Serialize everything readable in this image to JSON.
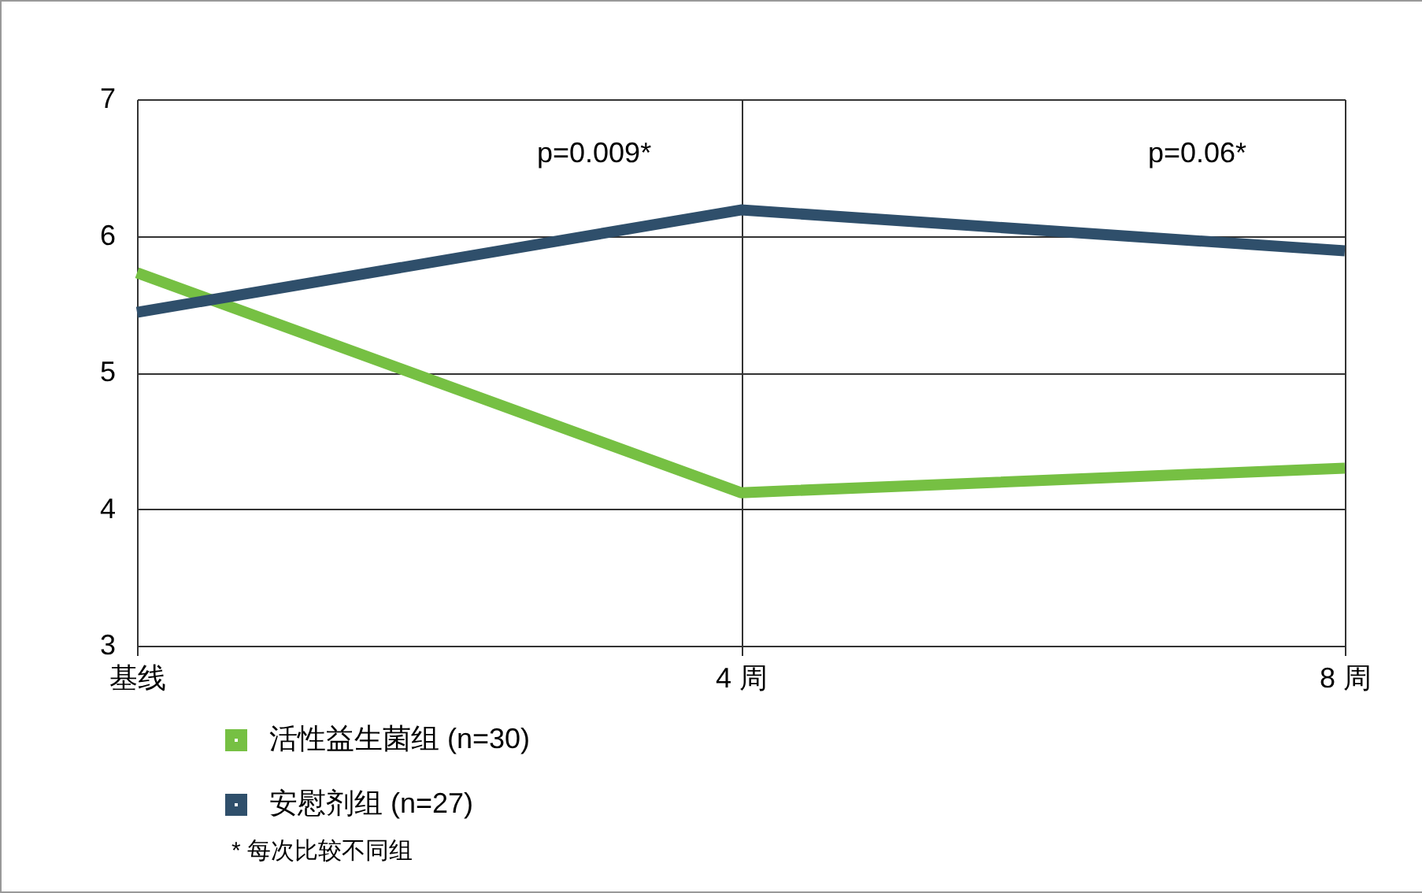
{
  "chart_data": {
    "type": "line",
    "categories": [
      "基线",
      "4 周",
      "8 周"
    ],
    "series": [
      {
        "name": "活性益生菌组 (n=30)",
        "color": "#76c043",
        "values": [
          5.73,
          4.12,
          4.3
        ]
      },
      {
        "name": "安慰剂组 (n=27)",
        "color": "#2f4f6b",
        "values": [
          5.44,
          6.19,
          5.89
        ]
      }
    ],
    "ylim": [
      3,
      7
    ],
    "yticks": [
      3,
      4,
      5,
      6,
      7
    ],
    "grid": true,
    "legend": "bottom left",
    "marker": "none",
    "line_style": "solid",
    "annotations": [
      "p=0.009*",
      "p=0.06*",
      "* 每次比较不同组"
    ]
  }
}
